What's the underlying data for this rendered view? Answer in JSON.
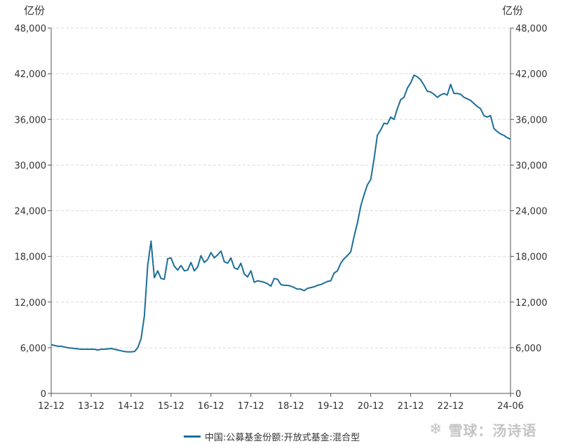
{
  "chart_data": {
    "type": "line",
    "unit_left": "亿份",
    "unit_right": "亿份",
    "y_ticks": [
      0,
      6000,
      12000,
      18000,
      24000,
      30000,
      36000,
      42000,
      48000
    ],
    "y_tick_labels": [
      "0",
      "6,000",
      "12,000",
      "18,000",
      "24,000",
      "30,000",
      "36,000",
      "42,000",
      "48,000"
    ],
    "ylim": [
      0,
      48000
    ],
    "xlim": [
      "2012-12",
      "2024-06"
    ],
    "x_tick_labels": [
      "12-12",
      "13-12",
      "14-12",
      "15-12",
      "16-12",
      "17-12",
      "18-12",
      "19-12",
      "20-12",
      "21-12",
      "22-12",
      "24-06"
    ],
    "x_tick_dates": [
      "2012-12",
      "2013-12",
      "2014-12",
      "2015-12",
      "2016-12",
      "2017-12",
      "2018-12",
      "2019-12",
      "2020-12",
      "2021-12",
      "2022-12",
      "2024-06"
    ],
    "grid": true,
    "legend_position": "bottom-center",
    "series": [
      {
        "name": "中国:公募基金份额:开放式基金:混合型",
        "color": "#1c6f97",
        "x": [
          "2012-12",
          "2013-01",
          "2013-02",
          "2013-03",
          "2013-04",
          "2013-05",
          "2013-06",
          "2013-07",
          "2013-08",
          "2013-09",
          "2013-10",
          "2013-11",
          "2013-12",
          "2014-01",
          "2014-02",
          "2014-03",
          "2014-04",
          "2014-05",
          "2014-06",
          "2014-07",
          "2014-08",
          "2014-09",
          "2014-10",
          "2014-11",
          "2014-12",
          "2015-01",
          "2015-02",
          "2015-03",
          "2015-04",
          "2015-05",
          "2015-06",
          "2015-07",
          "2015-08",
          "2015-09",
          "2015-10",
          "2015-11",
          "2015-12",
          "2016-01",
          "2016-02",
          "2016-03",
          "2016-04",
          "2016-05",
          "2016-06",
          "2016-07",
          "2016-08",
          "2016-09",
          "2016-10",
          "2016-11",
          "2016-12",
          "2017-01",
          "2017-02",
          "2017-03",
          "2017-04",
          "2017-05",
          "2017-06",
          "2017-07",
          "2017-08",
          "2017-09",
          "2017-10",
          "2017-11",
          "2017-12",
          "2018-01",
          "2018-02",
          "2018-03",
          "2018-04",
          "2018-05",
          "2018-06",
          "2018-07",
          "2018-08",
          "2018-09",
          "2018-10",
          "2018-11",
          "2018-12",
          "2019-01",
          "2019-02",
          "2019-03",
          "2019-04",
          "2019-05",
          "2019-06",
          "2019-07",
          "2019-08",
          "2019-09",
          "2019-10",
          "2019-11",
          "2019-12",
          "2020-01",
          "2020-02",
          "2020-03",
          "2020-04",
          "2020-05",
          "2020-06",
          "2020-07",
          "2020-08",
          "2020-09",
          "2020-10",
          "2020-11",
          "2020-12",
          "2021-01",
          "2021-02",
          "2021-03",
          "2021-04",
          "2021-05",
          "2021-06",
          "2021-07",
          "2021-08",
          "2021-09",
          "2021-10",
          "2021-11",
          "2021-12",
          "2022-01",
          "2022-02",
          "2022-03",
          "2022-04",
          "2022-05",
          "2022-06",
          "2022-07",
          "2022-08",
          "2022-09",
          "2022-10",
          "2022-11",
          "2022-12",
          "2023-01",
          "2023-02",
          "2023-03",
          "2023-04",
          "2023-05",
          "2023-06",
          "2023-07",
          "2023-08",
          "2023-09",
          "2023-10",
          "2023-11",
          "2023-12",
          "2024-01",
          "2024-02",
          "2024-03",
          "2024-04",
          "2024-05",
          "2024-06"
        ],
        "values": [
          6400,
          6300,
          6200,
          6200,
          6100,
          6000,
          5950,
          5900,
          5850,
          5800,
          5800,
          5800,
          5800,
          5800,
          5700,
          5800,
          5800,
          5850,
          5900,
          5800,
          5700,
          5600,
          5500,
          5450,
          5450,
          5500,
          6000,
          7200,
          10200,
          16800,
          20000,
          15200,
          16100,
          15100,
          15000,
          17700,
          17800,
          16700,
          16200,
          16800,
          16100,
          16200,
          17200,
          16100,
          16600,
          18100,
          17200,
          17600,
          18500,
          17800,
          18200,
          18700,
          17300,
          17100,
          17800,
          16500,
          16300,
          17100,
          15700,
          15300,
          16100,
          14600,
          14800,
          14700,
          14600,
          14400,
          14100,
          15100,
          15000,
          14300,
          14200,
          14200,
          14100,
          13900,
          13700,
          13700,
          13500,
          13800,
          13900,
          14000,
          14200,
          14300,
          14500,
          14700,
          14800,
          15800,
          16100,
          17100,
          17700,
          18100,
          18600,
          20600,
          22400,
          24600,
          26100,
          27400,
          28100,
          30800,
          33900,
          34600,
          35500,
          35400,
          36300,
          36000,
          37400,
          38600,
          38900,
          40100,
          40800,
          41800,
          41600,
          41200,
          40500,
          39700,
          39600,
          39300,
          38900,
          39200,
          39400,
          39200,
          40600,
          39400,
          39400,
          39300,
          38900,
          38700,
          38500,
          38100,
          37700,
          37400,
          36500,
          36300,
          36500,
          34800,
          34400,
          34100,
          33900,
          33600,
          33400
        ]
      }
    ]
  },
  "watermark": {
    "icon": "雪球-logo-icon",
    "text": "雪球：汤诗语"
  }
}
